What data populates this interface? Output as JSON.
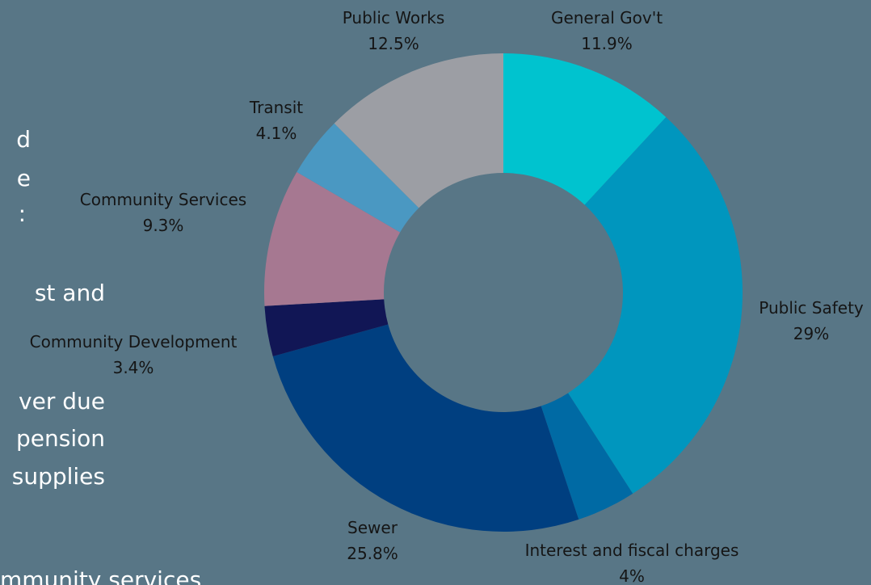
{
  "chart_data": {
    "type": "pie",
    "categories": [
      "General Gov't",
      "Public Safety",
      "Interest and fiscal charges",
      "Sewer",
      "Community Development",
      "Community Services",
      "Transit",
      "Public Works"
    ],
    "values": [
      11.9,
      29,
      4,
      25.8,
      3.4,
      9.3,
      4.1,
      12.5
    ],
    "value_labels": [
      "11.9%",
      "29%",
      "4%",
      "25.8%",
      "3.4%",
      "9.3%",
      "4.1%",
      "12.5%"
    ],
    "colors": [
      "#00c3cf",
      "#0096be",
      "#006aa4",
      "#003f80",
      "#111655",
      "#a67891",
      "#4a98c2",
      "#9c9ea4"
    ],
    "donut": true
  },
  "body_text": [
    "d",
    "e",
    ":",
    "st   and",
    "ver due",
    "pension",
    "supplies",
    "mmunity  services"
  ]
}
